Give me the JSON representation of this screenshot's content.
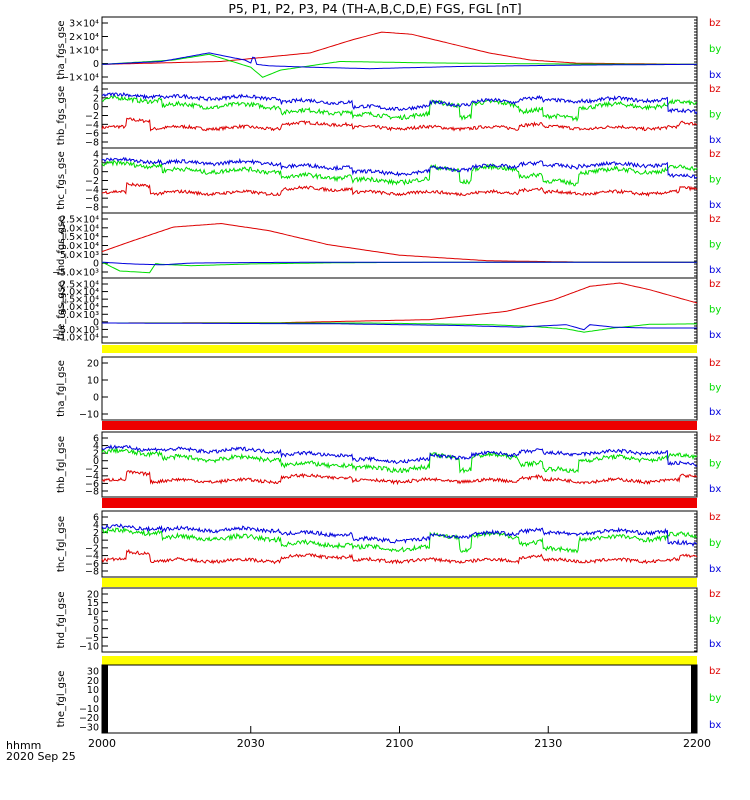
{
  "title": "P5, P1, P2, P3, P4 (TH-A,B,C,D,E) FGS, FGL [nT]",
  "footer": {
    "line1": "hhmm",
    "line2": "2020 Sep 25"
  },
  "x_axis": {
    "ticks": [
      "2000",
      "2030",
      "2100",
      "2130",
      "2200"
    ]
  },
  "colors": {
    "bz": "#dd0000",
    "by": "#00dd00",
    "bx": "#0000dd",
    "band": "#ffff00",
    "band_red": "#ee0000"
  },
  "chart_data": [
    {
      "type": "line",
      "ylabel": "tha_fgs_gse",
      "yticks": [
        "3×10⁴",
        "2×10⁴",
        "1×10⁴",
        "0",
        "−1×10⁴"
      ],
      "ylim": [
        -13000,
        33000
      ],
      "legend": [
        "bz",
        "by",
        "bx"
      ],
      "series": [
        {
          "name": "bz",
          "x": [
            0,
            20,
            35,
            42,
            47,
            52,
            58,
            65,
            72,
            80,
            100
          ],
          "y": [
            0,
            2000,
            8000,
            17000,
            22500,
            21000,
            15000,
            8000,
            3000,
            800,
            0
          ]
        },
        {
          "name": "by",
          "x": [
            0,
            12,
            18,
            25,
            27,
            30,
            40,
            55,
            75,
            100
          ],
          "y": [
            0,
            3000,
            7000,
            -2000,
            -9000,
            -4000,
            2000,
            1000,
            300,
            0
          ]
        },
        {
          "name": "bx",
          "x": [
            0,
            10,
            18,
            24,
            25,
            25.5,
            26,
            28,
            35,
            45,
            60,
            80,
            100
          ],
          "y": [
            0,
            2000,
            8000,
            3000,
            1000,
            7000,
            0,
            -1000,
            -2000,
            -3000,
            -1500,
            -500,
            0
          ]
        }
      ]
    },
    {
      "type": "line",
      "ylabel": "thb_fgs_gse",
      "yticks": [
        "4",
        "2",
        "0",
        "−2",
        "−4",
        "−6",
        "−8"
      ],
      "ylim": [
        -9,
        5.5
      ],
      "legend": [
        "bz",
        "by",
        "bx"
      ]
    },
    {
      "type": "line",
      "ylabel": "thc_fgs_gse",
      "yticks": [
        "4",
        "2",
        "0",
        "−2",
        "−4",
        "−6",
        "−8"
      ],
      "ylim": [
        -9,
        5.5
      ],
      "legend": [
        "bz",
        "by",
        "bx"
      ]
    },
    {
      "type": "line",
      "ylabel": "thd_fgs_gse",
      "yticks": [
        "2.5×10⁴",
        "2.0×10⁴",
        "1.5×10⁴",
        "1.0×10⁴",
        "5.0×10³",
        "0",
        "−5.0×10³"
      ],
      "ylim": [
        -9000,
        28000
      ],
      "legend": [
        "bz",
        "by",
        "bx"
      ],
      "series": [
        {
          "name": "bz",
          "x": [
            0,
            5,
            12,
            20,
            28,
            38,
            50,
            65,
            80,
            100
          ],
          "y": [
            6000,
            12000,
            20000,
            22000,
            18000,
            10000,
            4000,
            800,
            100,
            0
          ]
        },
        {
          "name": "by",
          "x": [
            0,
            3,
            8,
            9,
            10,
            15,
            25,
            40,
            60,
            100
          ],
          "y": [
            0,
            -5000,
            -6000,
            -800,
            -1200,
            -2000,
            -1000,
            -300,
            0,
            0
          ]
        },
        {
          "name": "bx",
          "x": [
            0,
            5,
            10,
            15,
            25,
            40,
            100
          ],
          "y": [
            0,
            -1000,
            -1500,
            -500,
            -200,
            0,
            0
          ]
        }
      ]
    },
    {
      "type": "line",
      "ylabel": "the_fgs_gse",
      "yticks": [
        "2.5×10⁴",
        "2.0×10⁴",
        "1.5×10⁴",
        "1.0×10⁴",
        "5.0×10³",
        "0",
        "−5.0×10³",
        "−1.0×10⁴"
      ],
      "ylim": [
        -12000,
        27000
      ],
      "legend": [
        "bz",
        "by",
        "bx"
      ],
      "series": [
        {
          "name": "bz",
          "x": [
            0,
            30,
            55,
            68,
            76,
            82,
            87,
            92,
            100
          ],
          "y": [
            0,
            200,
            2000,
            7000,
            14000,
            22000,
            24000,
            20000,
            12000
          ]
        },
        {
          "name": "by",
          "x": [
            0,
            45,
            65,
            72,
            78,
            81,
            86,
            92,
            100
          ],
          "y": [
            0,
            0,
            -1000,
            -2000,
            -3500,
            -5500,
            -3000,
            -800,
            -500
          ]
        },
        {
          "name": "bx",
          "x": [
            0,
            40,
            60,
            70,
            78,
            81,
            82,
            86,
            92,
            100
          ],
          "y": [
            0,
            -500,
            -1500,
            -2500,
            -1000,
            -4000,
            -1000,
            -2500,
            -3000,
            -3000
          ]
        }
      ]
    },
    {
      "type": "line",
      "ylabel": "tha_fgl_gse",
      "yticks": [
        "20",
        "10",
        "0",
        "−10"
      ],
      "ylim": [
        -15,
        25
      ],
      "legend": [
        "bz",
        "by",
        "bx"
      ]
    },
    {
      "type": "line",
      "ylabel": "thb_fgl_gse",
      "yticks": [
        "6",
        "4",
        "2",
        "0",
        "−2",
        "−4",
        "−6",
        "−8"
      ],
      "ylim": [
        -9,
        7
      ],
      "legend": [
        "bz",
        "by",
        "bx"
      ]
    },
    {
      "type": "line",
      "ylabel": "thc_fgl_gse",
      "yticks": [
        "6",
        "4",
        "2",
        "0",
        "−2",
        "−4",
        "−6",
        "−8"
      ],
      "ylim": [
        -9,
        7
      ],
      "legend": [
        "bz",
        "by",
        "bx"
      ]
    },
    {
      "type": "line",
      "ylabel": "thd_fgl_gse",
      "yticks": [
        "20",
        "15",
        "10",
        "5",
        "0",
        "−5",
        "−10"
      ],
      "ylim": [
        -13,
        22
      ],
      "legend": [
        "bz",
        "by",
        "bx"
      ]
    },
    {
      "type": "line",
      "ylabel": "the_fgl_gse",
      "yticks": [
        "30",
        "20",
        "10",
        "0",
        "−10",
        "−20",
        "−30"
      ],
      "ylim": [
        -35,
        35
      ],
      "legend": [
        "bz",
        "by",
        "bx"
      ]
    }
  ]
}
